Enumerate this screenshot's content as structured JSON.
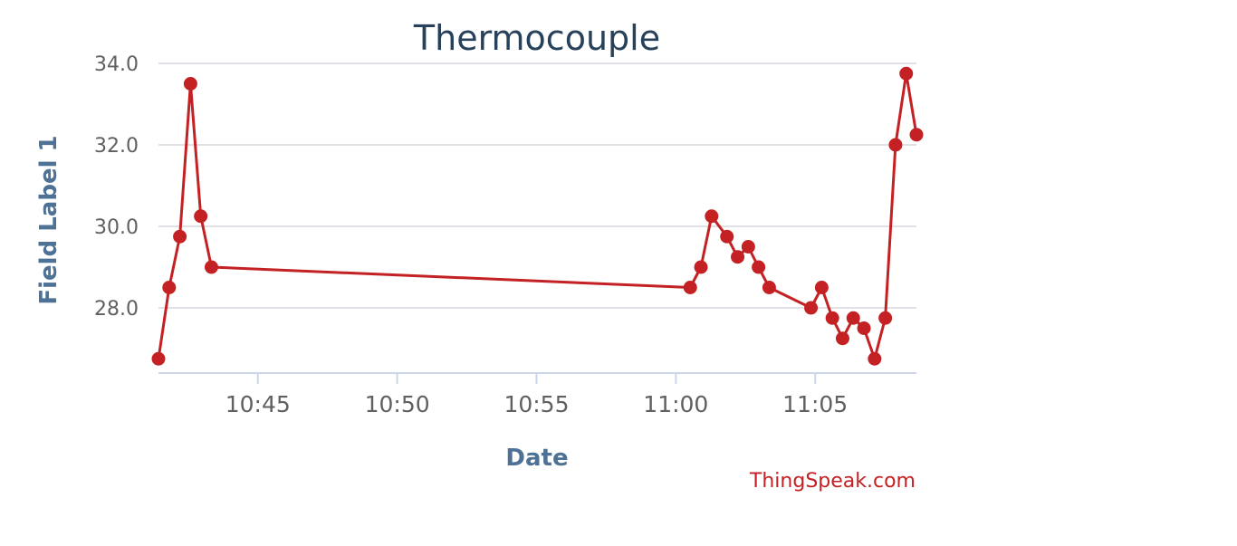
{
  "chart_data": {
    "type": "line",
    "title": "Thermocouple",
    "xlabel": "Date",
    "ylabel": "Field Label 1",
    "x_tick_labels": [
      "10:45",
      "10:50",
      "10:55",
      "11:00",
      "11:05"
    ],
    "y_tick_labels": [
      "28.0",
      "30.0",
      "32.0",
      "34.0"
    ],
    "ylim": [
      26.4,
      34.0
    ],
    "grid": true,
    "legend": "none",
    "credit": "ThingSpeak.com",
    "series": [
      {
        "color": "#c42124",
        "points": [
          {
            "x": "10:41:26",
            "y": 26.75
          },
          {
            "x": "10:41:49",
            "y": 28.5
          },
          {
            "x": "10:42:12",
            "y": 29.75
          },
          {
            "x": "10:42:35",
            "y": 33.5
          },
          {
            "x": "10:42:57",
            "y": 30.25
          },
          {
            "x": "10:43:20",
            "y": 29.0
          },
          {
            "x": "11:00:31",
            "y": 28.5
          },
          {
            "x": "11:00:54",
            "y": 29.0
          },
          {
            "x": "11:01:17",
            "y": 30.25
          },
          {
            "x": "11:01:50",
            "y": 29.75
          },
          {
            "x": "11:02:13",
            "y": 29.25
          },
          {
            "x": "11:02:36",
            "y": 29.5
          },
          {
            "x": "11:02:58",
            "y": 29.0
          },
          {
            "x": "11:03:21",
            "y": 28.5
          },
          {
            "x": "11:04:51",
            "y": 28.0
          },
          {
            "x": "11:05:14",
            "y": 28.5
          },
          {
            "x": "11:05:37",
            "y": 27.75
          },
          {
            "x": "11:05:59",
            "y": 27.25
          },
          {
            "x": "11:06:22",
            "y": 27.75
          },
          {
            "x": "11:06:45",
            "y": 27.5
          },
          {
            "x": "11:07:08",
            "y": 26.75
          },
          {
            "x": "11:07:31",
            "y": 27.75
          },
          {
            "x": "11:07:53",
            "y": 32.0
          },
          {
            "x": "11:08:16",
            "y": 33.75
          },
          {
            "x": "11:08:38",
            "y": 32.25
          }
        ]
      }
    ]
  }
}
